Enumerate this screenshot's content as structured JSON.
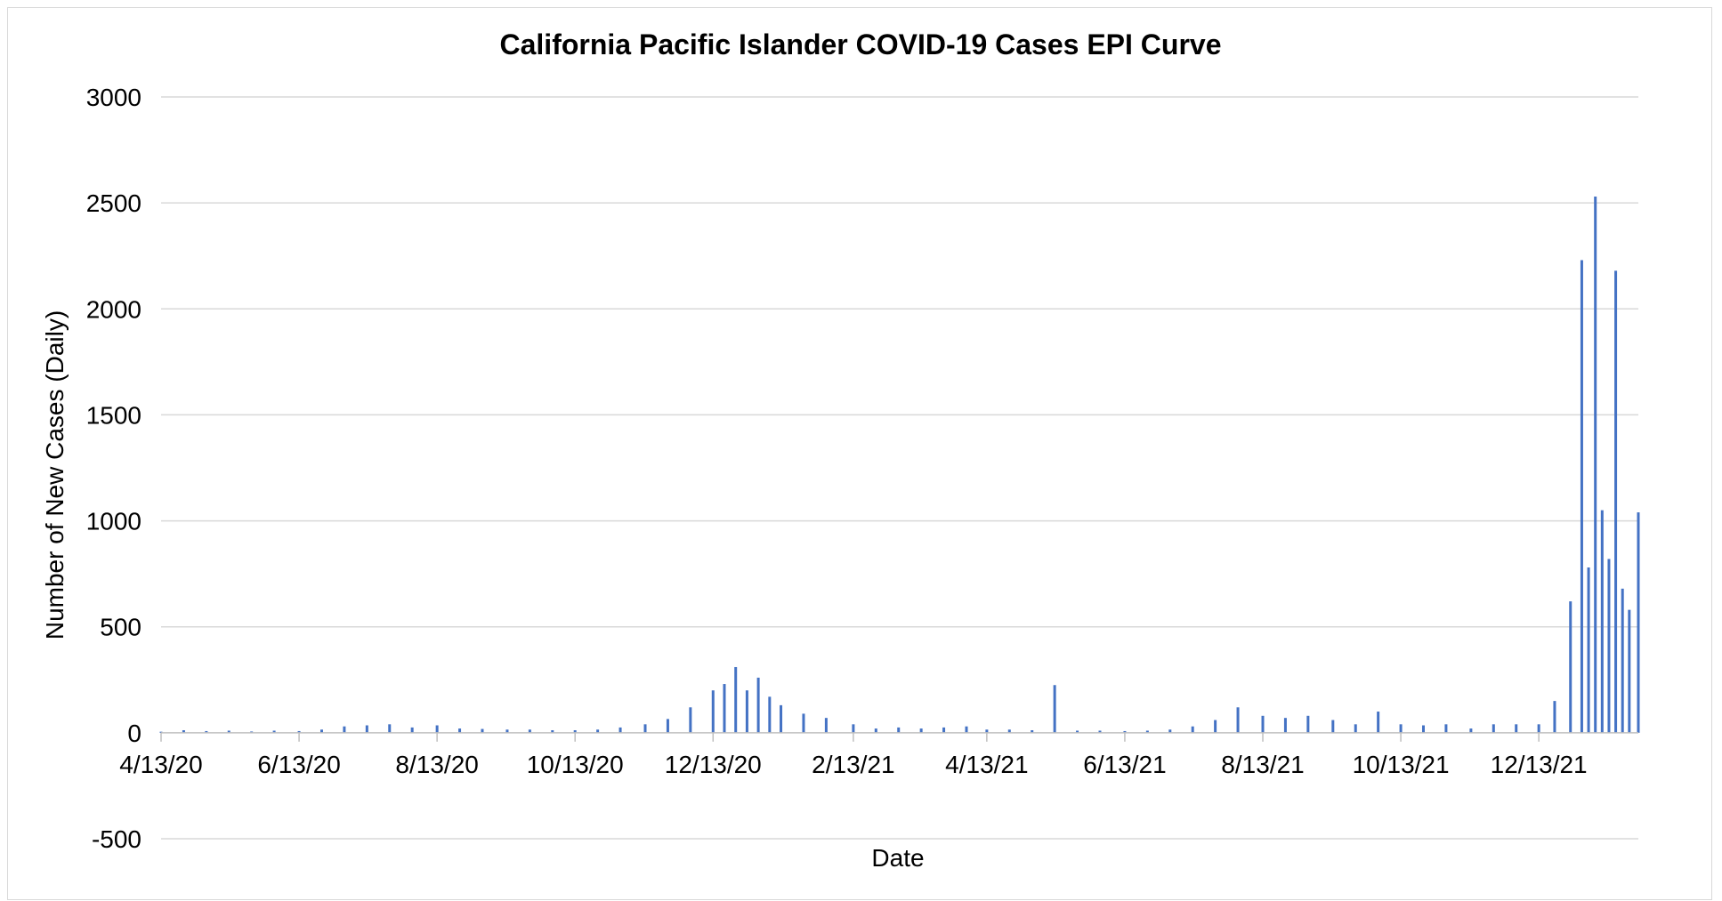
{
  "chart_data": {
    "type": "bar",
    "title": "California Pacific Islander COVID-19 Cases EPI Curve",
    "xlabel": "Date",
    "ylabel": "Number of New Cases (Daily)",
    "ylim": [
      -500,
      3000
    ],
    "y_ticks": [
      -500,
      0,
      500,
      1000,
      1500,
      2000,
      2500,
      3000
    ],
    "x_start_date": "2020-04-13",
    "x_end_date": "2022-01-26",
    "x_tick_labels": [
      "4/13/20",
      "6/13/20",
      "8/13/20",
      "10/13/20",
      "12/13/20",
      "2/13/21",
      "4/13/21",
      "6/13/21",
      "8/13/21",
      "10/13/21",
      "12/13/21"
    ],
    "x_tick_dates": [
      "2020-04-13",
      "2020-06-13",
      "2020-08-13",
      "2020-10-13",
      "2020-12-13",
      "2021-02-13",
      "2021-04-13",
      "2021-06-13",
      "2021-08-13",
      "2021-10-13",
      "2021-12-13"
    ],
    "grid": true,
    "legend": "none",
    "bar_color": "#4472c4",
    "series": [
      {
        "dates": [
          "2020-04-13",
          "2020-04-23",
          "2020-05-03",
          "2020-05-13",
          "2020-05-23",
          "2020-06-02",
          "2020-06-13",
          "2020-06-23",
          "2020-07-03",
          "2020-07-13",
          "2020-07-23",
          "2020-08-02",
          "2020-08-13",
          "2020-08-23",
          "2020-09-02",
          "2020-09-13",
          "2020-09-23",
          "2020-10-03",
          "2020-10-13",
          "2020-10-23",
          "2020-11-02",
          "2020-11-13",
          "2020-11-23",
          "2020-12-03",
          "2020-12-13",
          "2020-12-18",
          "2020-12-23",
          "2020-12-28",
          "2021-01-02",
          "2021-01-07",
          "2021-01-12",
          "2021-01-22",
          "2021-02-01",
          "2021-02-13",
          "2021-02-23",
          "2021-03-05",
          "2021-03-15",
          "2021-03-25",
          "2021-04-04",
          "2021-04-13",
          "2021-04-23",
          "2021-05-03",
          "2021-05-13",
          "2021-05-23",
          "2021-06-02",
          "2021-06-13",
          "2021-06-23",
          "2021-07-03",
          "2021-07-13",
          "2021-07-23",
          "2021-08-02",
          "2021-08-13",
          "2021-08-23",
          "2021-09-02",
          "2021-09-13",
          "2021-09-23",
          "2021-10-03",
          "2021-10-13",
          "2021-10-23",
          "2021-11-02",
          "2021-11-13",
          "2021-11-23",
          "2021-12-03",
          "2021-12-13",
          "2021-12-20",
          "2021-12-27",
          "2022-01-01",
          "2022-01-04",
          "2022-01-07",
          "2022-01-10",
          "2022-01-13",
          "2022-01-16",
          "2022-01-19",
          "2022-01-22",
          "2022-01-26"
        ],
        "values": [
          5,
          12,
          8,
          10,
          6,
          10,
          8,
          15,
          30,
          35,
          40,
          25,
          35,
          20,
          18,
          15,
          15,
          12,
          12,
          15,
          25,
          40,
          65,
          120,
          200,
          230,
          310,
          200,
          260,
          170,
          130,
          90,
          70,
          40,
          20,
          25,
          20,
          25,
          30,
          15,
          15,
          12,
          225,
          10,
          10,
          8,
          10,
          15,
          30,
          60,
          120,
          80,
          70,
          80,
          60,
          40,
          100,
          40,
          35,
          40,
          20,
          40,
          40,
          40,
          150,
          620,
          2230,
          780,
          2530,
          1050,
          820,
          2180,
          680,
          580,
          1040
        ]
      }
    ]
  }
}
